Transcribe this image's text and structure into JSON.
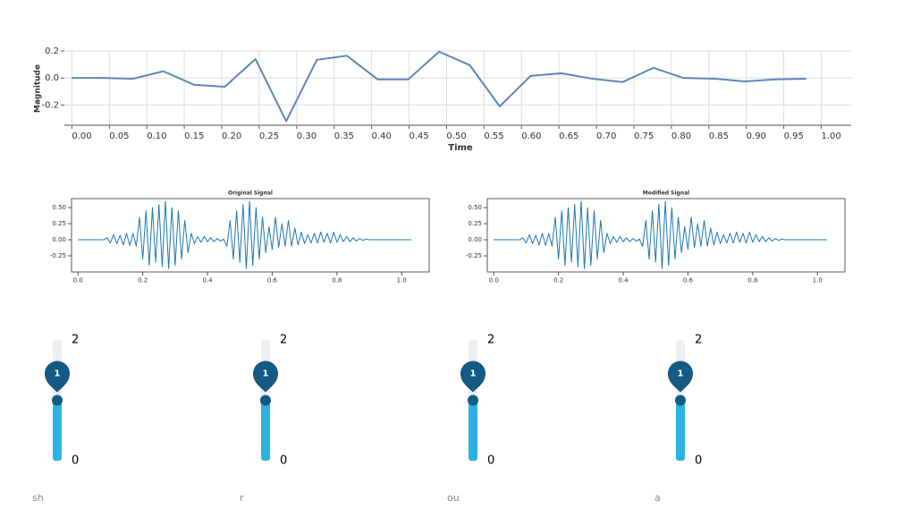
{
  "chart_data": [
    {
      "type": "line",
      "x_label": "Time",
      "y_label": "Magnitude",
      "color": "#5b87b8",
      "grid": true,
      "x": [
        0,
        0.041,
        0.082,
        0.122,
        0.163,
        0.204,
        0.245,
        0.286,
        0.327,
        0.367,
        0.408,
        0.449,
        0.49,
        0.531,
        0.571,
        0.612,
        0.653,
        0.694,
        0.735,
        0.776,
        0.816,
        0.857,
        0.898,
        0.939,
        0.98
      ],
      "values": [
        0,
        0,
        -0.005,
        0.05,
        -0.05,
        -0.065,
        0.14,
        -0.32,
        0.135,
        0.165,
        -0.01,
        -0.01,
        0.195,
        0.095,
        -0.21,
        0.015,
        0.035,
        -0.005,
        -0.03,
        0.075,
        0,
        -0.005,
        -0.025,
        -0.01,
        -0.005
      ],
      "xlim": [
        -0.01,
        1.04
      ],
      "ylim": [
        -0.35,
        0.2
      ],
      "xticks": [
        {
          "value": 0,
          "label": "0.00"
        },
        0.05,
        {
          "value": 0.1,
          "label": "0.10"
        },
        0.15,
        {
          "value": 0.2,
          "label": "0.20"
        },
        0.25,
        {
          "value": 0.3,
          "label": "0.30"
        },
        0.35,
        {
          "value": 0.4,
          "label": "0.40"
        },
        0.45,
        {
          "value": 0.5,
          "label": "0.50"
        },
        0.55,
        {
          "value": 0.6,
          "label": "0.60"
        },
        0.65,
        {
          "value": 0.7,
          "label": "0.70"
        },
        0.75,
        {
          "value": 0.8,
          "label": "0.80"
        },
        0.85,
        {
          "value": 0.9,
          "label": "0.90"
        },
        0.95,
        {
          "value": 1,
          "label": "1.00"
        }
      ],
      "yticks": [
        -0.2,
        {
          "value": 0,
          "label": "0.0"
        },
        0.2
      ]
    },
    {
      "type": "line",
      "title": "Original Signal",
      "color": "#1f77b4",
      "grid": false,
      "x": [
        0,
        0.01,
        0.02,
        0.03,
        0.04,
        0.05,
        0.06,
        0.07,
        0.08,
        0.09,
        0.1,
        0.11,
        0.12,
        0.13,
        0.14,
        0.15,
        0.16,
        0.17,
        0.18,
        0.19,
        0.2,
        0.21,
        0.22,
        0.23,
        0.24,
        0.25,
        0.26,
        0.27,
        0.28,
        0.29,
        0.3,
        0.31,
        0.32,
        0.33,
        0.34,
        0.35,
        0.36,
        0.37,
        0.38,
        0.39,
        0.4,
        0.41,
        0.42,
        0.43,
        0.44,
        0.45,
        0.46,
        0.47,
        0.48,
        0.49,
        0.5,
        0.51,
        0.52,
        0.53,
        0.54,
        0.55,
        0.56,
        0.57,
        0.58,
        0.59,
        0.6,
        0.61,
        0.62,
        0.63,
        0.64,
        0.65,
        0.66,
        0.67,
        0.68,
        0.69,
        0.7,
        0.71,
        0.72,
        0.73,
        0.74,
        0.75,
        0.76,
        0.77,
        0.78,
        0.79,
        0.8,
        0.81,
        0.82,
        0.83,
        0.84,
        0.85,
        0.86,
        0.87,
        0.88,
        0.89,
        0.9,
        0.91,
        0.92,
        0.93,
        0.94,
        0.95,
        0.96,
        0.97,
        0.98,
        0.99,
        1,
        1.01,
        1.02,
        1.03
      ],
      "values": [
        0,
        0,
        0,
        0,
        0,
        0,
        0,
        0,
        0,
        0.03,
        -0.05,
        0.08,
        -0.06,
        0.07,
        -0.08,
        0.1,
        -0.09,
        0.1,
        -0.1,
        0.35,
        -0.3,
        0.45,
        -0.4,
        0.5,
        -0.35,
        0.55,
        -0.42,
        0.6,
        -0.45,
        0.5,
        -0.4,
        0.45,
        -0.3,
        0.3,
        -0.2,
        0.1,
        -0.06,
        0.05,
        -0.04,
        0.05,
        -0.03,
        0.03,
        -0.03,
        0.02,
        -0.02,
        0.01,
        -0.1,
        0.3,
        -0.3,
        0.45,
        -0.35,
        0.55,
        -0.45,
        0.6,
        -0.4,
        0.5,
        -0.3,
        0.35,
        -0.2,
        0.2,
        -0.15,
        0.35,
        -0.12,
        0.25,
        -0.1,
        0.3,
        -0.1,
        0.18,
        -0.08,
        0.12,
        -0.06,
        0.08,
        -0.05,
        0.1,
        -0.05,
        0.12,
        -0.04,
        0.1,
        -0.05,
        0.12,
        -0.04,
        0.08,
        -0.03,
        0.05,
        -0.03,
        0.03,
        -0.02,
        0.02,
        -0.01,
        0.01,
        0,
        0,
        0,
        0,
        0,
        0,
        0,
        0,
        0,
        0,
        0,
        0,
        0,
        0
      ],
      "xlim": [
        -0.02,
        1.085
      ],
      "ylim": [
        -0.5,
        0.64
      ],
      "xticks": [
        {
          "value": 0,
          "label": "0.0"
        },
        0.2,
        0.4,
        0.6,
        0.8,
        {
          "value": 1,
          "label": "1.0"
        }
      ],
      "yticks": [
        -0.25,
        {
          "value": 0,
          "label": "0.00"
        },
        0.25,
        {
          "value": 0.5,
          "label": "0.50"
        }
      ]
    },
    {
      "type": "line",
      "title": "Modified Signal",
      "color": "#1f77b4",
      "grid": false,
      "x": [
        0,
        0.01,
        0.02,
        0.03,
        0.04,
        0.05,
        0.06,
        0.07,
        0.08,
        0.09,
        0.1,
        0.11,
        0.12,
        0.13,
        0.14,
        0.15,
        0.16,
        0.17,
        0.18,
        0.19,
        0.2,
        0.21,
        0.22,
        0.23,
        0.24,
        0.25,
        0.26,
        0.27,
        0.28,
        0.29,
        0.3,
        0.31,
        0.32,
        0.33,
        0.34,
        0.35,
        0.36,
        0.37,
        0.38,
        0.39,
        0.4,
        0.41,
        0.42,
        0.43,
        0.44,
        0.45,
        0.46,
        0.47,
        0.48,
        0.49,
        0.5,
        0.51,
        0.52,
        0.53,
        0.54,
        0.55,
        0.56,
        0.57,
        0.58,
        0.59,
        0.6,
        0.61,
        0.62,
        0.63,
        0.64,
        0.65,
        0.66,
        0.67,
        0.68,
        0.69,
        0.7,
        0.71,
        0.72,
        0.73,
        0.74,
        0.75,
        0.76,
        0.77,
        0.78,
        0.79,
        0.8,
        0.81,
        0.82,
        0.83,
        0.84,
        0.85,
        0.86,
        0.87,
        0.88,
        0.89,
        0.9,
        0.91,
        0.92,
        0.93,
        0.94,
        0.95,
        0.96,
        0.97,
        0.98,
        0.99,
        1,
        1.01,
        1.02,
        1.03
      ],
      "values": [
        0,
        0,
        0,
        0,
        0,
        0,
        0,
        0,
        0,
        0.03,
        -0.05,
        0.08,
        -0.06,
        0.07,
        -0.08,
        0.1,
        -0.09,
        0.1,
        -0.1,
        0.35,
        -0.3,
        0.45,
        -0.4,
        0.5,
        -0.35,
        0.55,
        -0.42,
        0.6,
        -0.45,
        0.5,
        -0.4,
        0.45,
        -0.3,
        0.3,
        -0.2,
        0.1,
        -0.06,
        0.05,
        -0.04,
        0.05,
        -0.03,
        0.03,
        -0.03,
        0.02,
        -0.02,
        0.01,
        -0.1,
        0.3,
        -0.3,
        0.45,
        -0.35,
        0.55,
        -0.45,
        0.6,
        -0.4,
        0.5,
        -0.3,
        0.35,
        -0.2,
        0.2,
        -0.15,
        0.35,
        -0.12,
        0.25,
        -0.1,
        0.3,
        -0.1,
        0.18,
        -0.08,
        0.12,
        -0.06,
        0.08,
        -0.05,
        0.1,
        -0.05,
        0.12,
        -0.04,
        0.1,
        -0.05,
        0.12,
        -0.04,
        0.08,
        -0.03,
        0.05,
        -0.03,
        0.03,
        -0.02,
        0.02,
        -0.01,
        0.01,
        0,
        0,
        0,
        0,
        0,
        0,
        0,
        0,
        0,
        0,
        0,
        0,
        0,
        0
      ],
      "xlim": [
        -0.02,
        1.085
      ],
      "ylim": [
        -0.5,
        0.64
      ],
      "xticks": [
        {
          "value": 0,
          "label": "0.0"
        },
        0.2,
        0.4,
        0.6,
        0.8,
        {
          "value": 1,
          "label": "1.0"
        }
      ],
      "yticks": [
        -0.25,
        {
          "value": 0,
          "label": "0.00"
        },
        0.25,
        {
          "value": 0.5,
          "label": "0.50"
        }
      ]
    }
  ],
  "sliders": [
    {
      "label": "sh",
      "min": 0,
      "max": 2,
      "value": 1
    },
    {
      "label": "r",
      "min": 0,
      "max": 2,
      "value": 1
    },
    {
      "label": "ou",
      "min": 0,
      "max": 2,
      "value": 1
    },
    {
      "label": "a",
      "min": 0,
      "max": 2,
      "value": 1
    }
  ]
}
